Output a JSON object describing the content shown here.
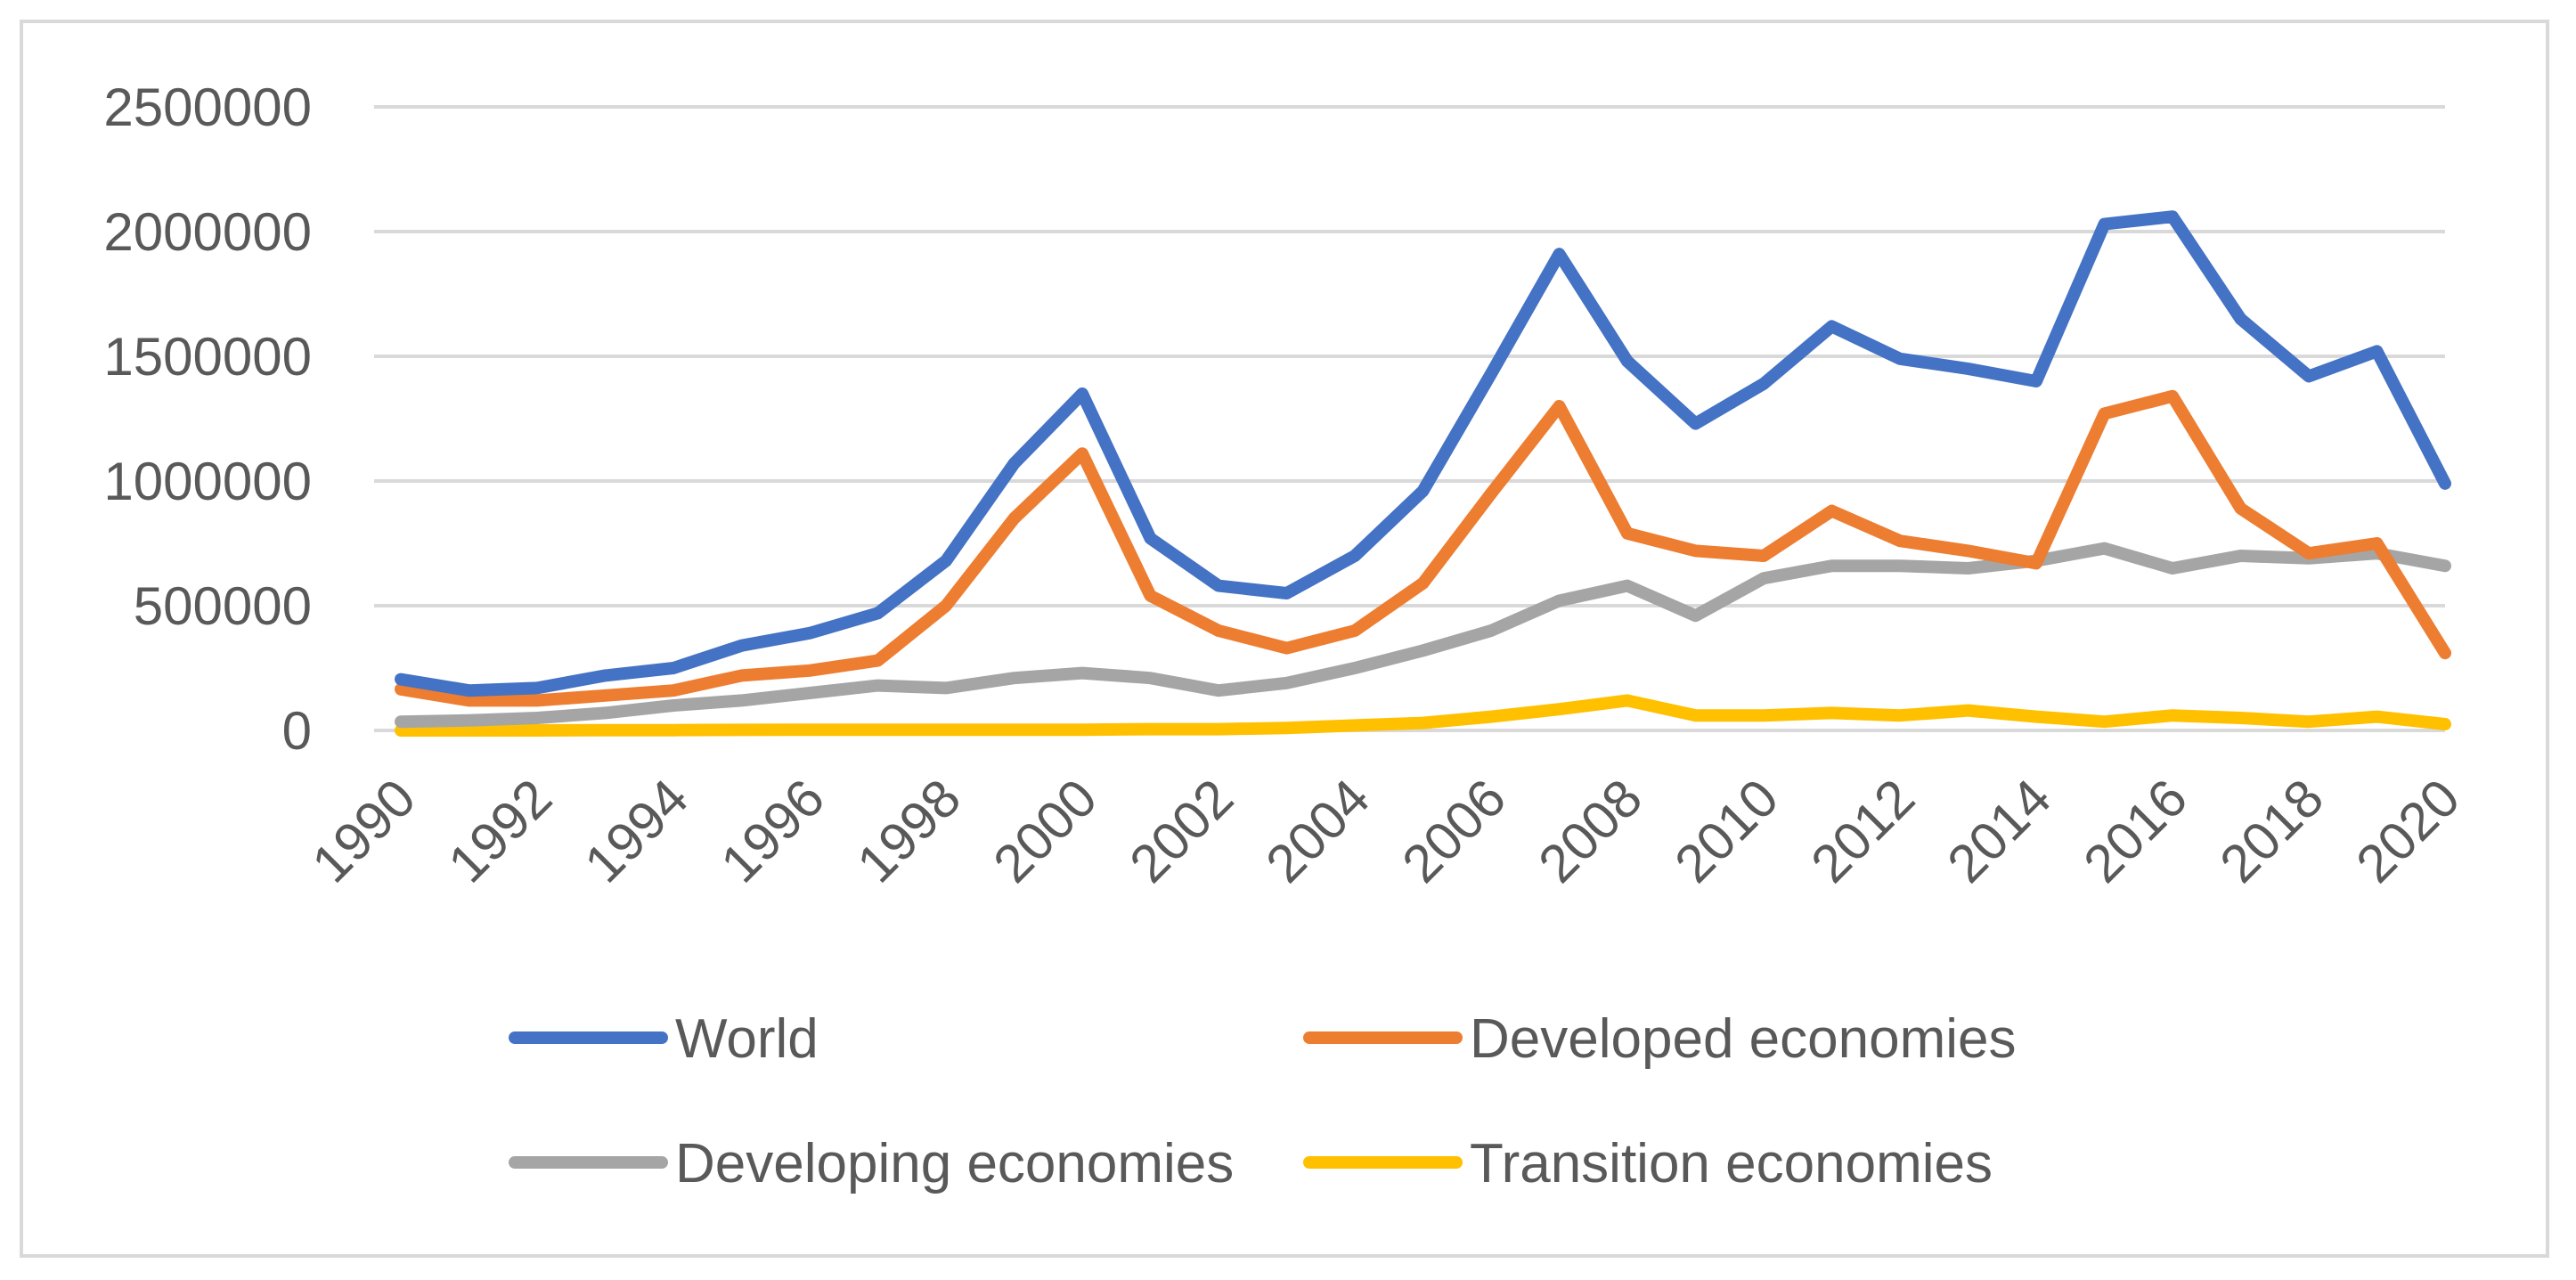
{
  "chart_data": {
    "type": "line",
    "title": "",
    "xlabel": "",
    "ylabel": "",
    "ylim": [
      0,
      2500000
    ],
    "yticks": [
      "0",
      "500000",
      "1000000",
      "1500000",
      "2000000",
      "2500000"
    ],
    "ytick_values": [
      0,
      500000,
      1000000,
      1500000,
      2000000,
      2500000
    ],
    "x": [
      1990,
      1991,
      1992,
      1993,
      1994,
      1995,
      1996,
      1997,
      1998,
      1999,
      2000,
      2001,
      2002,
      2003,
      2004,
      2005,
      2006,
      2007,
      2008,
      2009,
      2010,
      2011,
      2012,
      2013,
      2014,
      2015,
      2016,
      2017,
      2018,
      2019,
      2020
    ],
    "xtick_labels": [
      "1990",
      "1992",
      "1994",
      "1996",
      "1998",
      "2000",
      "2002",
      "2004",
      "2006",
      "2008",
      "2010",
      "2012",
      "2014",
      "2016",
      "2018",
      "2020"
    ],
    "grid": true,
    "legend_position": "bottom",
    "series": [
      {
        "name": "World",
        "color": "#4472c4",
        "values": [
          205000,
          160000,
          170000,
          220000,
          250000,
          340000,
          390000,
          470000,
          680000,
          1070000,
          1350000,
          770000,
          580000,
          550000,
          700000,
          960000,
          1430000,
          1910000,
          1480000,
          1230000,
          1390000,
          1620000,
          1490000,
          1450000,
          1400000,
          2030000,
          2060000,
          1650000,
          1420000,
          1520000,
          990000
        ]
      },
      {
        "name": "Developed economies",
        "color": "#ed7d31",
        "values": [
          165000,
          120000,
          120000,
          140000,
          160000,
          220000,
          240000,
          280000,
          500000,
          850000,
          1110000,
          540000,
          400000,
          330000,
          400000,
          590000,
          950000,
          1300000,
          790000,
          720000,
          700000,
          880000,
          760000,
          720000,
          670000,
          1270000,
          1340000,
          890000,
          710000,
          750000,
          310000
        ]
      },
      {
        "name": "Developing economies",
        "color": "#a5a5a5",
        "values": [
          35000,
          40000,
          50000,
          70000,
          100000,
          120000,
          150000,
          180000,
          170000,
          210000,
          230000,
          210000,
          160000,
          190000,
          250000,
          320000,
          400000,
          520000,
          580000,
          460000,
          610000,
          660000,
          660000,
          650000,
          680000,
          730000,
          650000,
          700000,
          690000,
          710000,
          660000
        ]
      },
      {
        "name": "Transition economies",
        "color": "#ffc000",
        "values": [
          0,
          0,
          0,
          1000,
          1000,
          2000,
          3000,
          3000,
          3000,
          3000,
          3000,
          5000,
          5000,
          10000,
          20000,
          30000,
          55000,
          85000,
          120000,
          60000,
          60000,
          70000,
          60000,
          80000,
          55000,
          35000,
          60000,
          50000,
          35000,
          55000,
          25000
        ]
      }
    ]
  }
}
